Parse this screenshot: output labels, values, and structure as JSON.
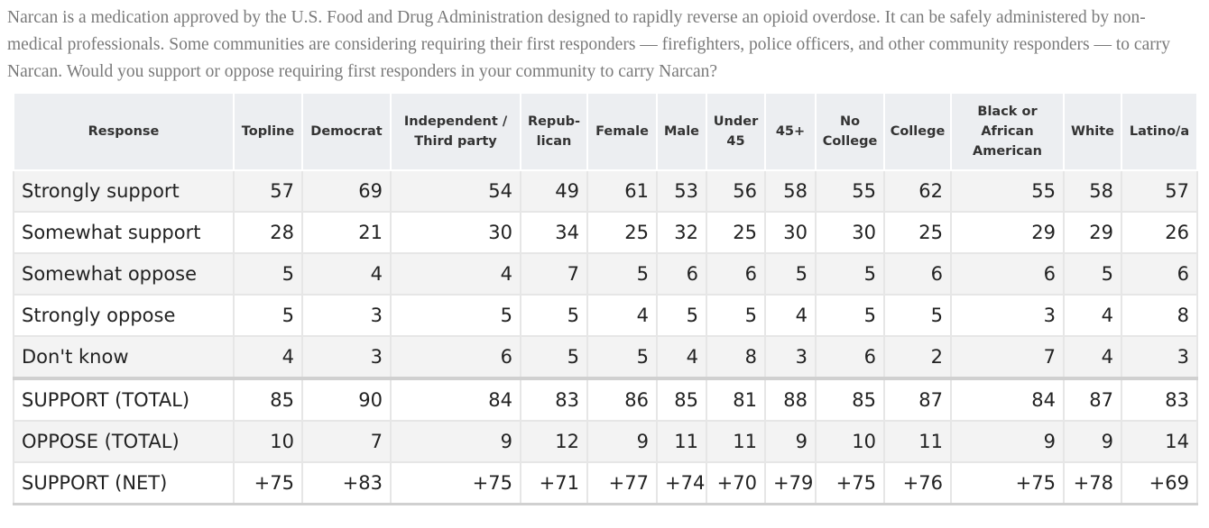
{
  "intro": "Narcan is a medication approved by the U.S. Food and Drug Administration designed to rapidly reverse an opioid overdose. It can be safely administered by non-medical professionals. Some communities are considering requiring their first responders — firefighters, police officers, and other community responders — to carry Narcan. Would you support or oppose requiring first responders in your community to carry Narcan?",
  "table": {
    "headers": [
      "Response",
      "Topline",
      "Democrat",
      "Independent /\nThird party",
      "Repub-\nlican",
      "Female",
      "Male",
      "Under\n45",
      "45+",
      "No\nCollege",
      "College",
      "Black or\nAfrican\nAmerican",
      "White",
      "Latino/a"
    ],
    "rows": [
      [
        "Strongly support",
        57,
        69,
        54,
        49,
        61,
        53,
        56,
        58,
        55,
        62,
        55,
        58,
        57
      ],
      [
        "Somewhat support",
        28,
        21,
        30,
        34,
        25,
        32,
        25,
        30,
        30,
        25,
        29,
        29,
        26
      ],
      [
        "Somewhat oppose",
        5,
        4,
        4,
        7,
        5,
        6,
        6,
        5,
        5,
        6,
        6,
        5,
        6
      ],
      [
        "Strongly oppose",
        5,
        3,
        5,
        5,
        4,
        5,
        5,
        4,
        5,
        5,
        3,
        4,
        8
      ],
      [
        "Don't know",
        4,
        3,
        6,
        5,
        5,
        4,
        8,
        3,
        6,
        2,
        7,
        4,
        3
      ],
      [
        "SUPPORT (TOTAL)",
        85,
        90,
        84,
        83,
        86,
        85,
        81,
        88,
        85,
        87,
        84,
        87,
        83
      ],
      [
        "OPPOSE (TOTAL)",
        10,
        7,
        9,
        12,
        9,
        11,
        11,
        9,
        10,
        11,
        9,
        9,
        14
      ],
      [
        "SUPPORT (NET)",
        "+75",
        "+83",
        "+75",
        "+71",
        "+77",
        "+74",
        "+70",
        "+79",
        "+75",
        "+76",
        "+75",
        "+78",
        "+69"
      ]
    ]
  }
}
